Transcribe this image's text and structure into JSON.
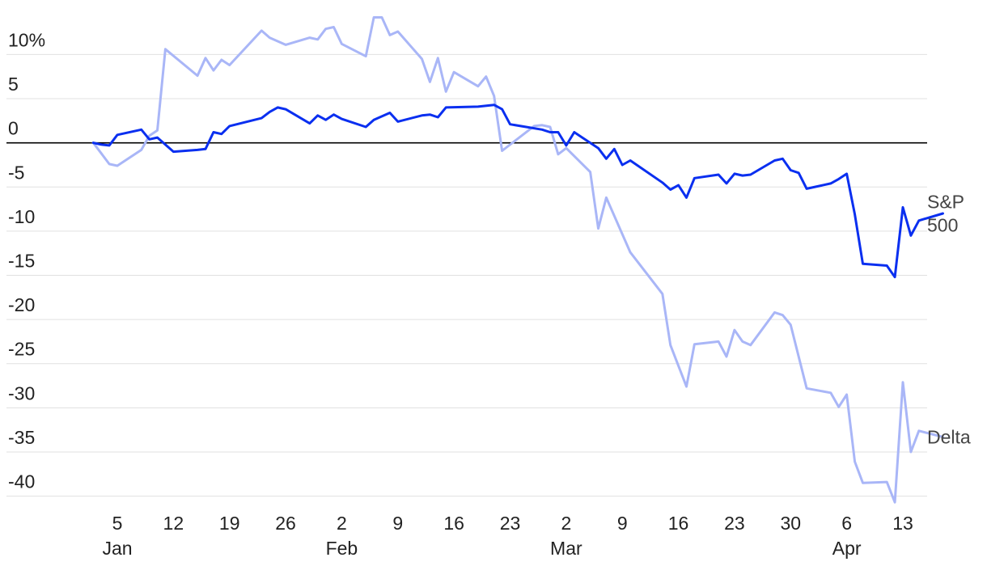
{
  "chart_data": {
    "type": "line",
    "title": "",
    "xlabel": "",
    "ylabel": "",
    "unit_suffix": "%",
    "ylim": [
      -40,
      10
    ],
    "yticks": [
      {
        "value": 10,
        "label": "10%"
      },
      {
        "value": 5,
        "label": "5"
      },
      {
        "value": 0,
        "label": "0"
      },
      {
        "value": -5,
        "label": "-5"
      },
      {
        "value": -10,
        "label": "-10"
      },
      {
        "value": -15,
        "label": "-15"
      },
      {
        "value": -20,
        "label": "-20"
      },
      {
        "value": -25,
        "label": "-25"
      },
      {
        "value": -30,
        "label": "-30"
      },
      {
        "value": -35,
        "label": "-35"
      },
      {
        "value": -40,
        "label": "-40"
      }
    ],
    "xlim": [
      "2025-01-01",
      "2025-04-15"
    ],
    "xticks": [
      {
        "date": "2025-01-05",
        "label": "5",
        "month": "Jan"
      },
      {
        "date": "2025-01-12",
        "label": "12",
        "month": ""
      },
      {
        "date": "2025-01-19",
        "label": "19",
        "month": ""
      },
      {
        "date": "2025-01-26",
        "label": "26",
        "month": ""
      },
      {
        "date": "2025-02-02",
        "label": "2",
        "month": "Feb"
      },
      {
        "date": "2025-02-09",
        "label": "9",
        "month": ""
      },
      {
        "date": "2025-02-16",
        "label": "16",
        "month": ""
      },
      {
        "date": "2025-02-23",
        "label": "23",
        "month": ""
      },
      {
        "date": "2025-03-02",
        "label": "2",
        "month": "Mar"
      },
      {
        "date": "2025-03-09",
        "label": "9",
        "month": ""
      },
      {
        "date": "2025-03-16",
        "label": "16",
        "month": ""
      },
      {
        "date": "2025-03-23",
        "label": "23",
        "month": ""
      },
      {
        "date": "2025-03-30",
        "label": "30",
        "month": ""
      },
      {
        "date": "2025-04-06",
        "label": "6",
        "month": "Apr"
      },
      {
        "date": "2025-04-13",
        "label": "13",
        "month": ""
      }
    ],
    "grid": true,
    "colors": {
      "sp500": "#0a2ff0",
      "delta": "#a9b6f7",
      "grid": "#e0e0e0",
      "zero_line": "#000000"
    },
    "series": [
      {
        "name": "S&P 500",
        "label_lines": [
          "S&P",
          "500"
        ],
        "points": [
          [
            "2025-01-02",
            0
          ],
          [
            "2025-01-03",
            -0.2
          ],
          [
            "2025-01-04",
            -0.3
          ],
          [
            "2025-01-05",
            0.9
          ],
          [
            "2025-01-08",
            1.5
          ],
          [
            "2025-01-09",
            0.4
          ],
          [
            "2025-01-10",
            0.6
          ],
          [
            "2025-01-12",
            -1.0
          ],
          [
            "2025-01-15",
            -0.8
          ],
          [
            "2025-01-16",
            -0.7
          ],
          [
            "2025-01-17",
            1.2
          ],
          [
            "2025-01-18",
            1.0
          ],
          [
            "2025-01-19",
            1.9
          ],
          [
            "2025-01-23",
            2.8
          ],
          [
            "2025-01-24",
            3.5
          ],
          [
            "2025-01-25",
            4.0
          ],
          [
            "2025-01-26",
            3.8
          ],
          [
            "2025-01-29",
            2.2
          ],
          [
            "2025-01-30",
            3.1
          ],
          [
            "2025-01-31",
            2.6
          ],
          [
            "2025-02-01",
            3.2
          ],
          [
            "2025-02-02",
            2.7
          ],
          [
            "2025-02-05",
            1.8
          ],
          [
            "2025-02-06",
            2.6
          ],
          [
            "2025-02-08",
            3.4
          ],
          [
            "2025-02-09",
            2.4
          ],
          [
            "2025-02-12",
            3.1
          ],
          [
            "2025-02-13",
            3.2
          ],
          [
            "2025-02-14",
            2.9
          ],
          [
            "2025-02-15",
            4.0
          ],
          [
            "2025-02-19",
            4.1
          ],
          [
            "2025-02-21",
            4.3
          ],
          [
            "2025-02-22",
            3.8
          ],
          [
            "2025-02-23",
            2.1
          ],
          [
            "2025-02-27",
            1.5
          ],
          [
            "2025-02-28",
            1.2
          ],
          [
            "2025-03-01",
            1.2
          ],
          [
            "2025-03-02",
            -0.3
          ],
          [
            "2025-03-03",
            1.2
          ],
          [
            "2025-03-04",
            0.6
          ],
          [
            "2025-03-06",
            -0.6
          ],
          [
            "2025-03-07",
            -1.8
          ],
          [
            "2025-03-08",
            -0.7
          ],
          [
            "2025-03-09",
            -2.5
          ],
          [
            "2025-03-10",
            -2.0
          ],
          [
            "2025-03-14",
            -4.5
          ],
          [
            "2025-03-15",
            -5.3
          ],
          [
            "2025-03-16",
            -4.8
          ],
          [
            "2025-03-17",
            -6.2
          ],
          [
            "2025-03-18",
            -4.0
          ],
          [
            "2025-03-21",
            -3.6
          ],
          [
            "2025-03-22",
            -4.6
          ],
          [
            "2025-03-23",
            -3.5
          ],
          [
            "2025-03-24",
            -3.7
          ],
          [
            "2025-03-25",
            -3.6
          ],
          [
            "2025-03-28",
            -2.0
          ],
          [
            "2025-03-29",
            -1.8
          ],
          [
            "2025-03-30",
            -3.1
          ],
          [
            "2025-03-31",
            -3.4
          ],
          [
            "2025-04-01",
            -5.2
          ],
          [
            "2025-04-04",
            -4.6
          ],
          [
            "2025-04-05",
            -4.1
          ],
          [
            "2025-04-06",
            -3.5
          ],
          [
            "2025-04-07",
            -8.1
          ],
          [
            "2025-04-08",
            -13.7
          ],
          [
            "2025-04-11",
            -13.9
          ],
          [
            "2025-04-12",
            -15.2
          ],
          [
            "2025-04-13",
            -7.3
          ],
          [
            "2025-04-14",
            -10.5
          ],
          [
            "2025-04-15",
            -8.8
          ],
          [
            "2025-04-18",
            -8.0
          ]
        ]
      },
      {
        "name": "Delta",
        "label_lines": [
          "Delta"
        ],
        "points": [
          [
            "2025-01-02",
            0
          ],
          [
            "2025-01-03",
            -1.2
          ],
          [
            "2025-01-04",
            -2.4
          ],
          [
            "2025-01-05",
            -2.6
          ],
          [
            "2025-01-08",
            -0.8
          ],
          [
            "2025-01-09",
            0.8
          ],
          [
            "2025-01-10",
            1.4
          ],
          [
            "2025-01-11",
            10.6
          ],
          [
            "2025-01-15",
            7.6
          ],
          [
            "2025-01-16",
            9.6
          ],
          [
            "2025-01-17",
            8.2
          ],
          [
            "2025-01-18",
            9.4
          ],
          [
            "2025-01-19",
            8.8
          ],
          [
            "2025-01-23",
            12.7
          ],
          [
            "2025-01-24",
            11.9
          ],
          [
            "2025-01-26",
            11.1
          ],
          [
            "2025-01-29",
            11.9
          ],
          [
            "2025-01-30",
            11.7
          ],
          [
            "2025-01-31",
            12.9
          ],
          [
            "2025-02-01",
            13.1
          ],
          [
            "2025-02-02",
            11.2
          ],
          [
            "2025-02-05",
            9.8
          ],
          [
            "2025-02-06",
            14.2
          ],
          [
            "2025-02-07",
            14.2
          ],
          [
            "2025-02-08",
            12.2
          ],
          [
            "2025-02-09",
            12.6
          ],
          [
            "2025-02-12",
            9.5
          ],
          [
            "2025-02-13",
            6.9
          ],
          [
            "2025-02-14",
            9.6
          ],
          [
            "2025-02-15",
            5.8
          ],
          [
            "2025-02-16",
            8.0
          ],
          [
            "2025-02-19",
            6.4
          ],
          [
            "2025-02-20",
            7.5
          ],
          [
            "2025-02-21",
            5.3
          ],
          [
            "2025-02-22",
            -0.9
          ],
          [
            "2025-02-26",
            1.9
          ],
          [
            "2025-02-27",
            2.0
          ],
          [
            "2025-02-28",
            1.8
          ],
          [
            "2025-03-01",
            -1.3
          ],
          [
            "2025-03-02",
            -0.6
          ],
          [
            "2025-03-05",
            -3.3
          ],
          [
            "2025-03-06",
            -9.7
          ],
          [
            "2025-03-07",
            -6.2
          ],
          [
            "2025-03-10",
            -12.4
          ],
          [
            "2025-03-14",
            -17.1
          ],
          [
            "2025-03-15",
            -22.9
          ],
          [
            "2025-03-17",
            -27.6
          ],
          [
            "2025-03-18",
            -22.8
          ],
          [
            "2025-03-21",
            -22.5
          ],
          [
            "2025-03-22",
            -24.2
          ],
          [
            "2025-03-23",
            -21.2
          ],
          [
            "2025-03-24",
            -22.5
          ],
          [
            "2025-03-25",
            -22.9
          ],
          [
            "2025-03-28",
            -19.2
          ],
          [
            "2025-03-29",
            -19.5
          ],
          [
            "2025-03-30",
            -20.6
          ],
          [
            "2025-03-31",
            -24.2
          ],
          [
            "2025-04-01",
            -27.8
          ],
          [
            "2025-04-04",
            -28.3
          ],
          [
            "2025-04-05",
            -29.9
          ],
          [
            "2025-04-06",
            -28.5
          ],
          [
            "2025-04-07",
            -36.1
          ],
          [
            "2025-04-08",
            -38.5
          ],
          [
            "2025-04-11",
            -38.4
          ],
          [
            "2025-04-12",
            -40.7
          ],
          [
            "2025-04-13",
            -27.1
          ],
          [
            "2025-04-14",
            -35.0
          ],
          [
            "2025-04-15",
            -32.6
          ],
          [
            "2025-04-18",
            -33.3
          ]
        ]
      }
    ]
  }
}
